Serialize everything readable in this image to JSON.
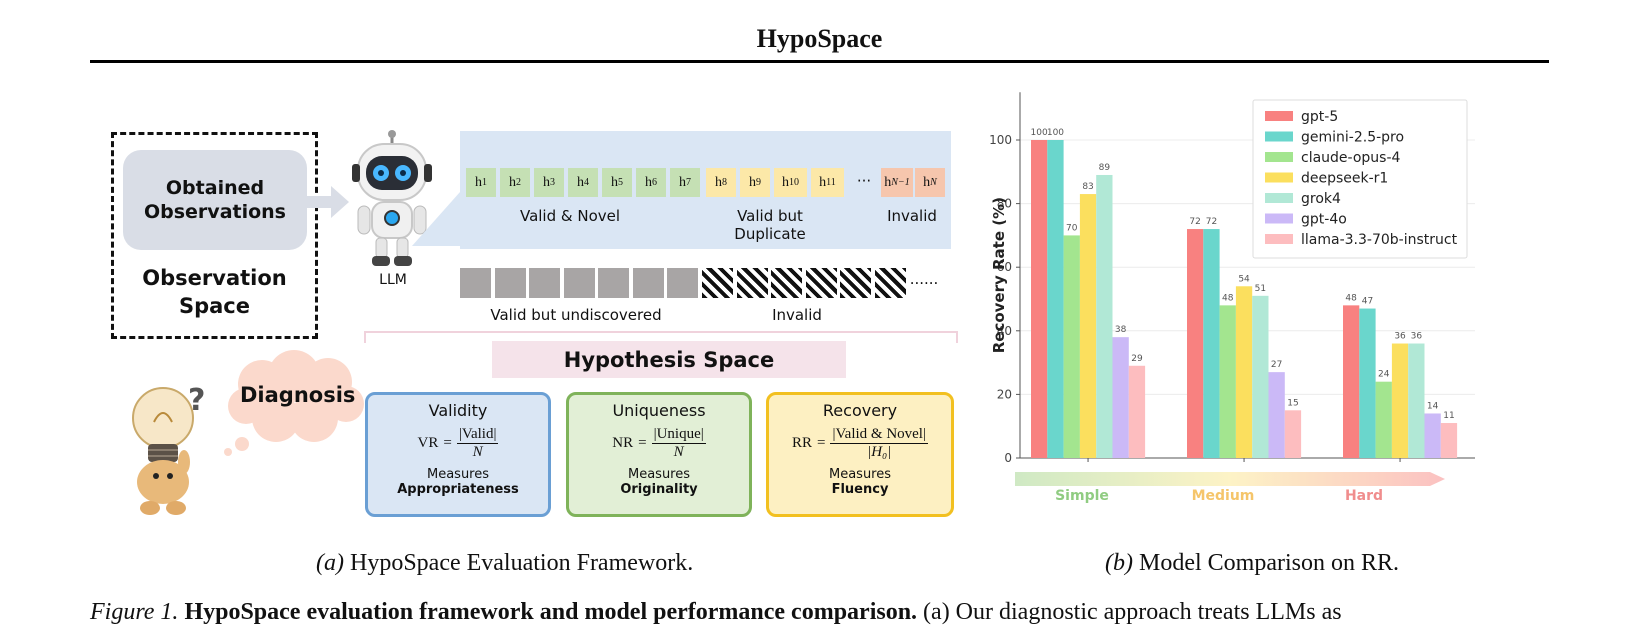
{
  "header": {
    "title": "HypoSpace"
  },
  "framework": {
    "observation_space": {
      "inner_label": "Obtained Observations",
      "outer_label": "Observation Space"
    },
    "llm_label": "LLM",
    "tokens": [
      {
        "base": "h",
        "sub": "1"
      },
      {
        "base": "h",
        "sub": "2"
      },
      {
        "base": "h",
        "sub": "3"
      },
      {
        "base": "h",
        "sub": "4"
      },
      {
        "base": "h",
        "sub": "5"
      },
      {
        "base": "h",
        "sub": "6"
      },
      {
        "base": "h",
        "sub": "7"
      },
      {
        "base": "h",
        "sub": "8"
      },
      {
        "base": "h",
        "sub": "9"
      },
      {
        "base": "h",
        "sub": "10"
      },
      {
        "base": "h",
        "sub": "11"
      },
      {
        "base": "h",
        "sub": "N−1"
      },
      {
        "base": "h",
        "sub": "N"
      }
    ],
    "token_ellipsis": "···",
    "group_labels": {
      "valid_novel": "Valid & Novel",
      "valid_duplicate": "Valid but Duplicate",
      "invalid": "Invalid"
    },
    "square_ellipsis": "......",
    "lower_labels": {
      "undiscovered": "Valid but undiscovered",
      "invalid": "Invalid"
    },
    "hypothesis_space": "Hypothesis Space",
    "diagnosis": "Diagnosis",
    "metrics": [
      {
        "title": "Validity",
        "lhs": "VR",
        "numerator": "|Valid|",
        "denominator": "N",
        "measures": "Measures",
        "quality": "Appropriateness",
        "border": "#6a9fd4",
        "fill": "#dae6f4"
      },
      {
        "title": "Uniqueness",
        "lhs": "NR",
        "numerator": "|Unique|",
        "denominator": "N",
        "measures": "Measures",
        "quality": "Originality",
        "border": "#7fb35a",
        "fill": "#e2efd6"
      },
      {
        "title": "Recovery",
        "lhs": "RR",
        "numerator": "|Valid & Novel|",
        "denominator": "|H₀|",
        "measures": "Measures",
        "quality": "Fluency",
        "border": "#f2c020",
        "fill": "#fdf0c2"
      }
    ]
  },
  "chart_data": {
    "type": "bar",
    "categories": [
      "Simple",
      "Medium",
      "Hard"
    ],
    "category_colors": [
      "#90cc82",
      "#f5c56a",
      "#f08d8d"
    ],
    "ylabel": "Recovery Rate (%)",
    "xlabel": "",
    "ylim": [
      0,
      115
    ],
    "yticks": [
      0,
      20,
      40,
      60,
      80,
      100
    ],
    "grid": true,
    "legend_position": "top-right",
    "series": [
      {
        "name": "gpt-5",
        "color": "#f88180",
        "values": [
          100,
          72,
          48
        ]
      },
      {
        "name": "gemini-2.5-pro",
        "color": "#6ad6cc",
        "values": [
          100,
          72,
          47
        ]
      },
      {
        "name": "claude-opus-4",
        "color": "#a3e58f",
        "values": [
          70,
          48,
          24
        ]
      },
      {
        "name": "deepseek-r1",
        "color": "#fbdf5e",
        "values": [
          83,
          54,
          36
        ]
      },
      {
        "name": "grok4",
        "color": "#b1e8d6",
        "values": [
          89,
          51,
          36
        ]
      },
      {
        "name": "gpt-4o",
        "color": "#cbb9f7",
        "values": [
          38,
          27,
          14
        ]
      },
      {
        "name": "llama-3.3-70b-instruct",
        "color": "#fdbdbf",
        "values": [
          29,
          15,
          11
        ]
      }
    ]
  },
  "captions": {
    "a_label": "(a)",
    "a_text": "HypoSpace Evaluation Framework.",
    "b_label": "(b)",
    "b_text": "Model Comparison on RR."
  },
  "figure_caption": {
    "label": "Figure 1.",
    "bold": "HypoSpace evaluation framework and model performance comparison.",
    "text": "(a) Our diagnostic approach treats LLMs as"
  }
}
